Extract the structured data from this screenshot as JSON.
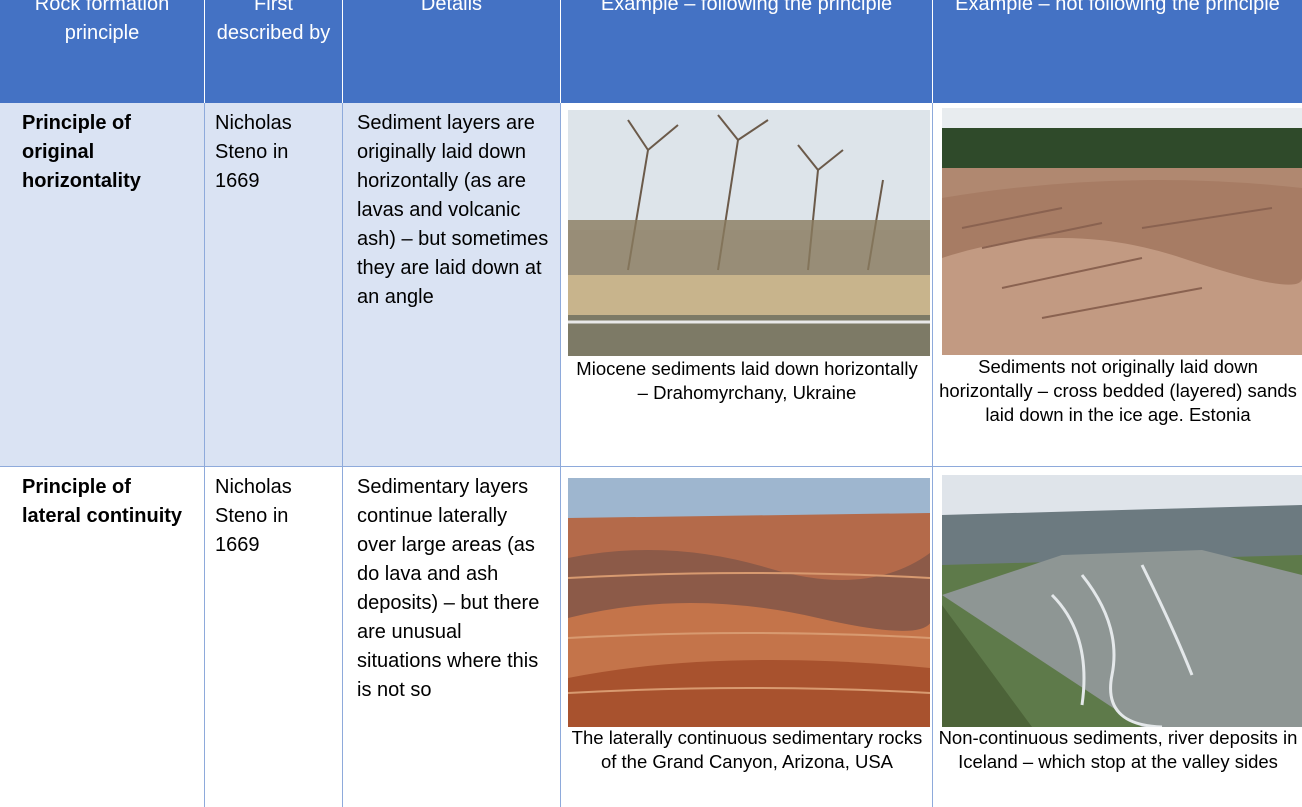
{
  "table": {
    "header": [
      "Rock formation principle",
      "First described by",
      "Details",
      "Example – following the principle",
      "Example – not following the principle"
    ],
    "rows": [
      [
        "Principle of original horizontality",
        "Nicholas Steno in 1669",
        "Sediment layers are originally laid down horizontally (as are lavas and volcanic ash) – but sometimes they are laid down at an angle",
        "Miocene sediments laid down horizontally – Drahomyrchany, Ukraine",
        "Sediments not originally laid down horizontally – cross bedded (layered) sands laid down in the ice age. Estonia"
      ],
      [
        "Principle of lateral continuity",
        "Nicholas Steno in 1669",
        "Sedimentary layers continue laterally over large areas (as do lava and ash deposits) – but there are unusual situations where this is not so",
        "The laterally continuous sedimentary rocks of the Grand Canyon, Arizona, USA",
        "Non-continuous sediments, river deposits in Iceland – which stop at the valley sides"
      ]
    ]
  }
}
